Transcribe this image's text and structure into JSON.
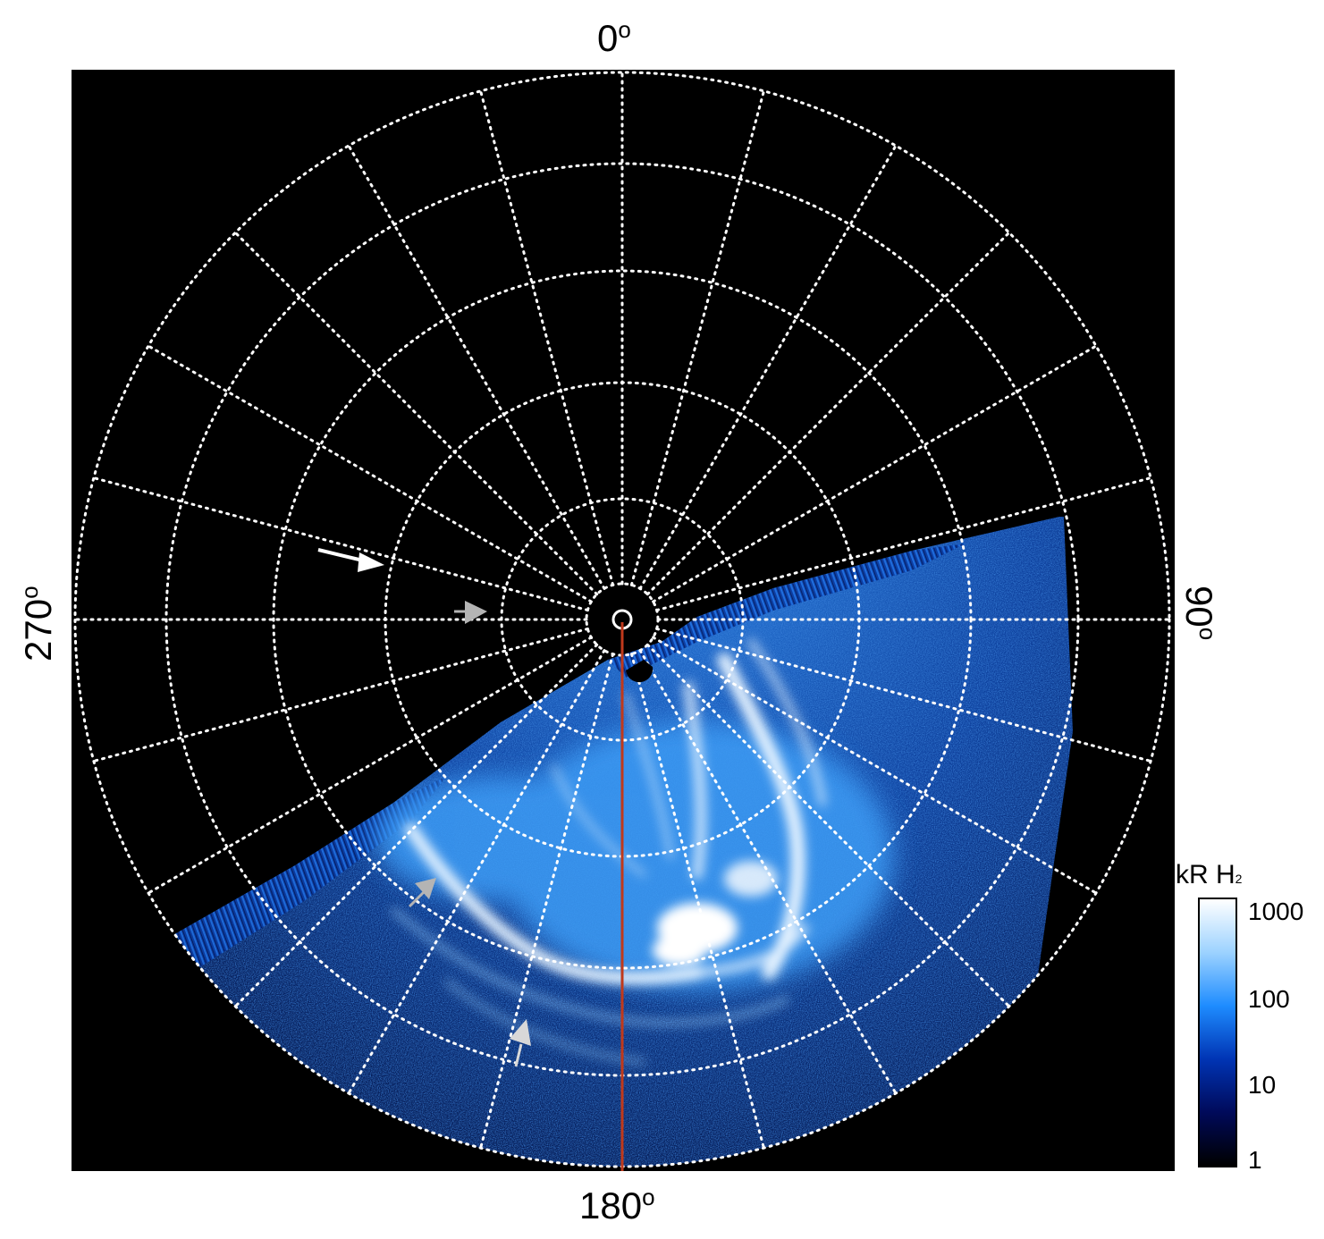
{
  "labels": {
    "top": "0",
    "bottom": "180",
    "left": "270",
    "right": "90",
    "degree": "o"
  },
  "colorbar": {
    "title_main": "kR H",
    "title_sub": "2",
    "ticks": [
      "1000",
      "100",
      "10",
      "1"
    ],
    "scale": "log",
    "colors": [
      "#000000",
      "#000a5a",
      "#0034b4",
      "#1e8cff",
      "#9cd2ff",
      "#ffffff"
    ]
  },
  "colors": {
    "background": "#000000",
    "grid": "#ffffff",
    "meridian_line": "#c0391b",
    "arrow_white": "#ffffff",
    "arrow_grey": "#b4b4b4",
    "aurora_bright": "#e8f4ff"
  },
  "icons": [
    "white-arrow-icon",
    "grey-arrow-icon"
  ]
}
